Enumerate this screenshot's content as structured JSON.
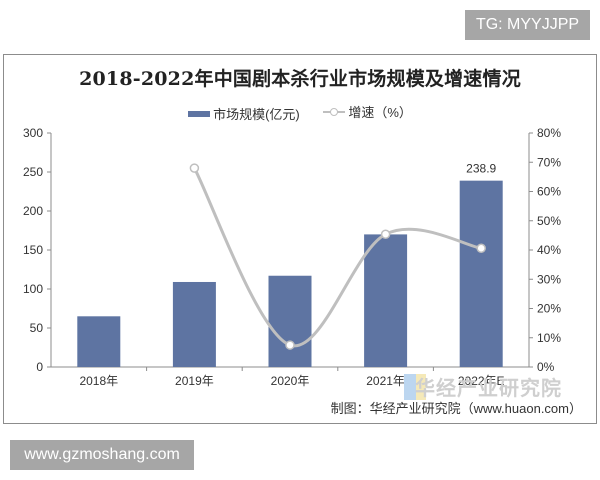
{
  "watermarks": {
    "top": "TG: MYYJJPP",
    "bottom": "www.gzmoshang.com"
  },
  "chart": {
    "title": "2018-2022年中国剧本杀行业市场规模及增速情况",
    "legend": {
      "bar_label": "市场规模(亿元)",
      "line_label": "增速（%）"
    },
    "source": "制图：华经产业研究院（www.huaon.com）",
    "logo_text": "华经产业研究院",
    "bar_value_label": "238.9",
    "colors": {
      "bar": "#5e74a2",
      "line": "#bfbfbf",
      "axis": "#8c8c8c"
    }
  },
  "chart_data": {
    "type": "bar",
    "title": "2018-2022年中国剧本杀行业市场规模及增速情况",
    "categories": [
      "2018年",
      "2019年",
      "2020年",
      "2021年",
      "2022年E"
    ],
    "series": [
      {
        "name": "市场规模(亿元)",
        "type": "bar",
        "axis": "left",
        "values": [
          65,
          109,
          117,
          170,
          238.9
        ]
      },
      {
        "name": "增速（%）",
        "type": "line",
        "axis": "right",
        "values": [
          null,
          68,
          7.5,
          45.4,
          40.6
        ]
      }
    ],
    "left_axis": {
      "ylim": [
        0,
        300
      ],
      "ticks": [
        "0",
        "50",
        "100",
        "150",
        "200",
        "250",
        "300"
      ]
    },
    "right_axis": {
      "ylim": [
        0,
        80
      ],
      "ticks": [
        "0%",
        "10%",
        "20%",
        "30%",
        "40%",
        "50%",
        "60%",
        "70%",
        "80%"
      ]
    },
    "data_labels": [
      {
        "category": "2022年E",
        "value": "238.9"
      }
    ],
    "legend_position": "top",
    "grid": false,
    "xlabel": "",
    "ylabel": ""
  }
}
